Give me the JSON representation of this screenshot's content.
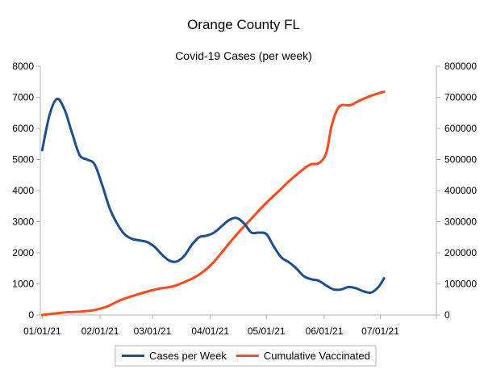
{
  "chart_data": {
    "type": "line",
    "title": "Orange County FL",
    "subtitle": "Covid-19 Cases (per week)",
    "x_type": "date",
    "x_ticks": [
      "01/01/21",
      "02/01/21",
      "03/01/21",
      "04/01/21",
      "05/01/21",
      "06/01/21",
      "07/01/21"
    ],
    "x_range": [
      "2020-12-31",
      "2021-07-31"
    ],
    "y_left": {
      "range": [
        0,
        8000
      ],
      "ticks": [
        "0",
        "1000",
        "2000",
        "3000",
        "4000",
        "5000",
        "6000",
        "7000",
        "8000"
      ]
    },
    "y_right": {
      "range": [
        0,
        800000
      ],
      "ticks": [
        "0",
        "100000",
        "200000",
        "300000",
        "400000",
        "500000",
        "600000",
        "700000",
        "800000"
      ]
    },
    "grid": false,
    "legend_position": "bottom",
    "series": [
      {
        "name": "Cases per Week",
        "axis": "left",
        "color": "#1f4e8c",
        "points": [
          [
            "2021-01-01",
            5300
          ],
          [
            "2021-01-05",
            6450
          ],
          [
            "2021-01-09",
            6950
          ],
          [
            "2021-01-13",
            6600
          ],
          [
            "2021-01-17",
            5850
          ],
          [
            "2021-01-21",
            5150
          ],
          [
            "2021-01-25",
            5000
          ],
          [
            "2021-01-29",
            4850
          ],
          [
            "2021-02-02",
            4200
          ],
          [
            "2021-02-06",
            3450
          ],
          [
            "2021-02-10",
            2950
          ],
          [
            "2021-02-14",
            2600
          ],
          [
            "2021-02-18",
            2450
          ],
          [
            "2021-02-22",
            2400
          ],
          [
            "2021-02-26",
            2350
          ],
          [
            "2021-03-02",
            2200
          ],
          [
            "2021-03-06",
            1950
          ],
          [
            "2021-03-10",
            1750
          ],
          [
            "2021-03-14",
            1720
          ],
          [
            "2021-03-18",
            1900
          ],
          [
            "2021-03-22",
            2250
          ],
          [
            "2021-03-26",
            2500
          ],
          [
            "2021-03-30",
            2550
          ],
          [
            "2021-04-03",
            2650
          ],
          [
            "2021-04-07",
            2850
          ],
          [
            "2021-04-11",
            3050
          ],
          [
            "2021-04-15",
            3120
          ],
          [
            "2021-04-19",
            2950
          ],
          [
            "2021-04-23",
            2650
          ],
          [
            "2021-04-27",
            2650
          ],
          [
            "2021-05-01",
            2600
          ],
          [
            "2021-05-05",
            2200
          ],
          [
            "2021-05-09",
            1850
          ],
          [
            "2021-05-13",
            1700
          ],
          [
            "2021-05-17",
            1500
          ],
          [
            "2021-05-21",
            1250
          ],
          [
            "2021-05-25",
            1150
          ],
          [
            "2021-05-29",
            1100
          ],
          [
            "2021-06-02",
            950
          ],
          [
            "2021-06-06",
            820
          ],
          [
            "2021-06-10",
            820
          ],
          [
            "2021-06-14",
            900
          ],
          [
            "2021-06-18",
            860
          ],
          [
            "2021-06-22",
            760
          ],
          [
            "2021-06-26",
            720
          ],
          [
            "2021-06-30",
            900
          ],
          [
            "2021-07-03",
            1180
          ]
        ]
      },
      {
        "name": "Cumulative Vaccinated",
        "axis": "right",
        "color": "#ff4a1c",
        "points": [
          [
            "2021-01-01",
            0
          ],
          [
            "2021-01-08",
            5000
          ],
          [
            "2021-01-15",
            9000
          ],
          [
            "2021-01-22",
            11000
          ],
          [
            "2021-01-29",
            16000
          ],
          [
            "2021-02-05",
            28000
          ],
          [
            "2021-02-12",
            48000
          ],
          [
            "2021-02-19",
            62000
          ],
          [
            "2021-02-26",
            75000
          ],
          [
            "2021-03-05",
            85000
          ],
          [
            "2021-03-12",
            92000
          ],
          [
            "2021-03-19",
            108000
          ],
          [
            "2021-03-26",
            130000
          ],
          [
            "2021-04-02",
            165000
          ],
          [
            "2021-04-09",
            215000
          ],
          [
            "2021-04-16",
            265000
          ],
          [
            "2021-04-23",
            310000
          ],
          [
            "2021-04-30",
            355000
          ],
          [
            "2021-05-07",
            395000
          ],
          [
            "2021-05-14",
            435000
          ],
          [
            "2021-05-21",
            470000
          ],
          [
            "2021-05-25",
            485000
          ],
          [
            "2021-05-29",
            488000
          ],
          [
            "2021-06-02",
            520000
          ],
          [
            "2021-06-05",
            610000
          ],
          [
            "2021-06-09",
            670000
          ],
          [
            "2021-06-15",
            675000
          ],
          [
            "2021-06-20",
            690000
          ],
          [
            "2021-06-26",
            705000
          ],
          [
            "2021-07-03",
            718000
          ]
        ]
      }
    ]
  }
}
